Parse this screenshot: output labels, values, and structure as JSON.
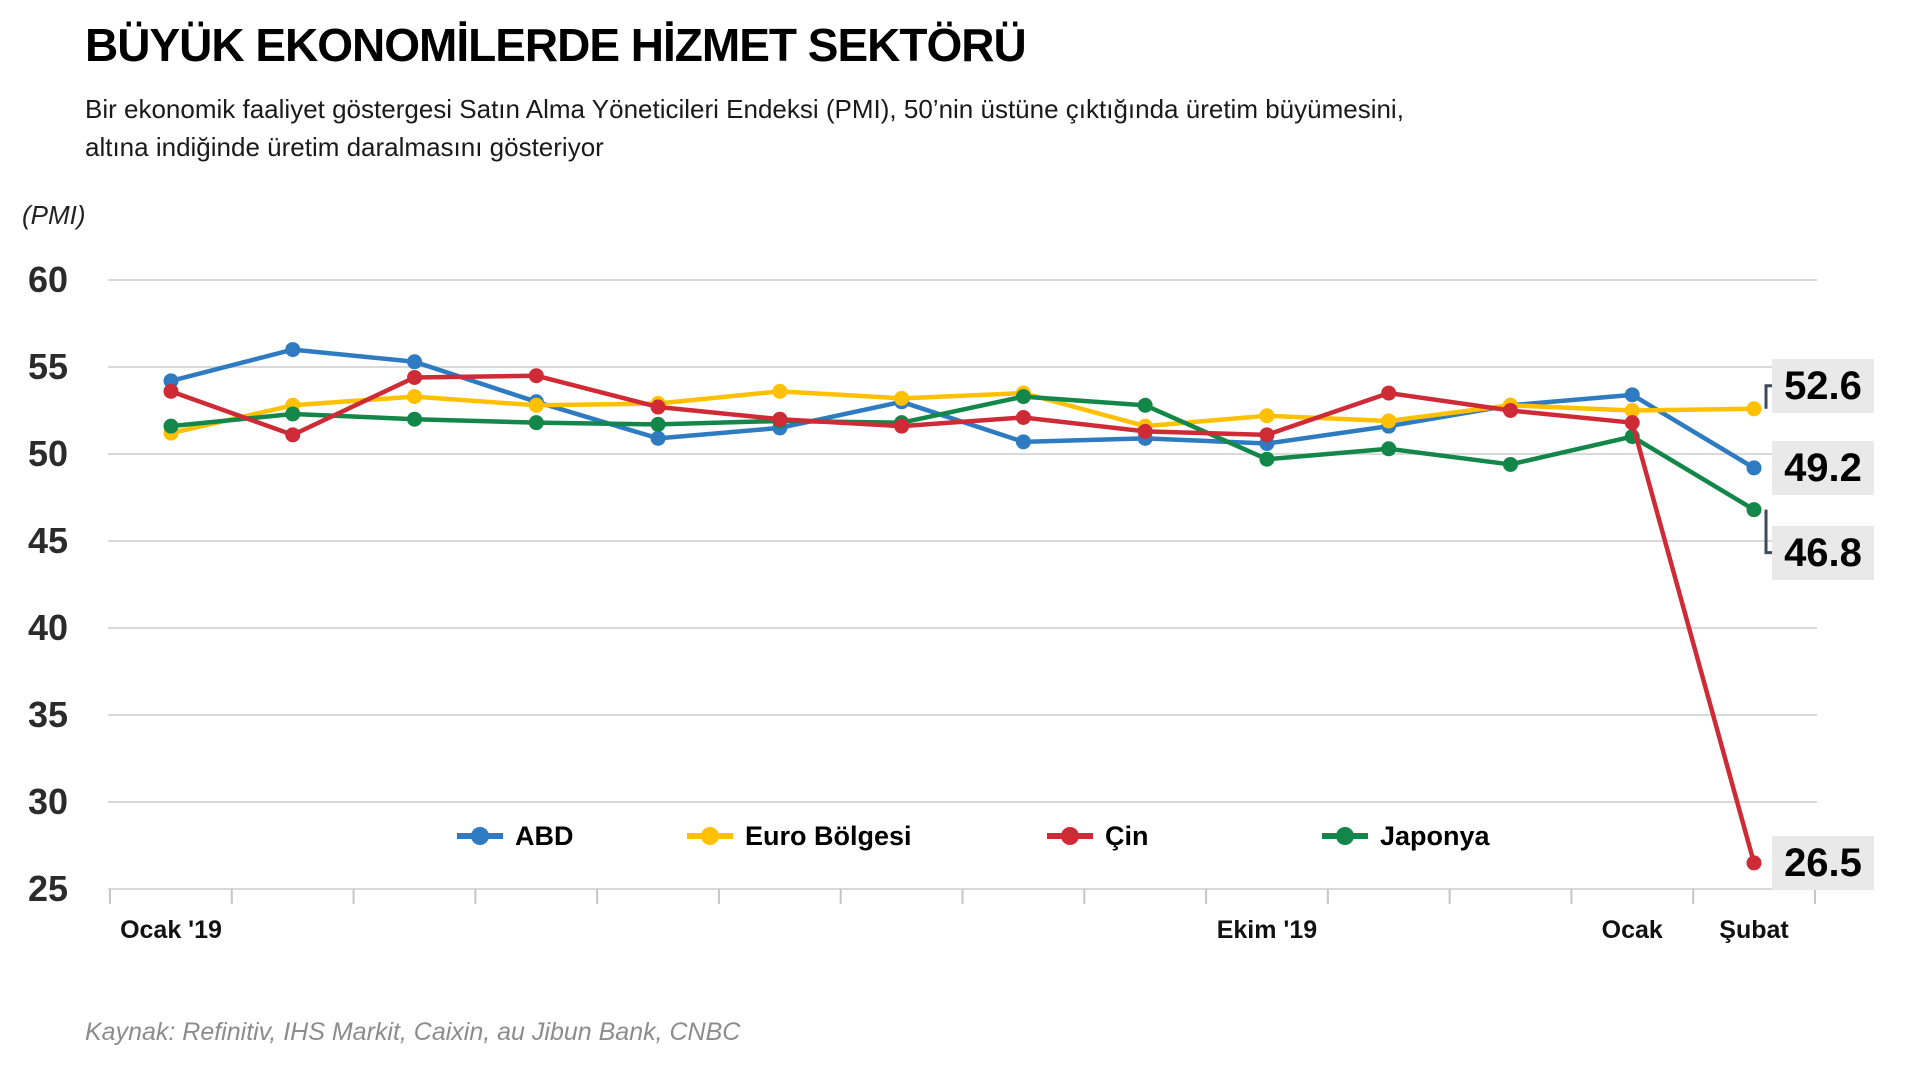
{
  "header": {
    "title": "BÜYÜK EKONOMİLERDE HİZMET SEKTÖRÜ",
    "subtitle_line1": "Bir ekonomik faaliyet göstergesi Satın Alma Yöneticileri Endeksi (PMI), 50’nin üstüne çıktığında üretim büyümesini,",
    "subtitle_line2": "altına indiğinde üretim daralmasını gösteriyor"
  },
  "axis_unit_label": "(PMI)",
  "source_note": "Kaynak: Refinitiv, IHS Markit, Caixin, au Jibun Bank, CNBC",
  "chart_data": {
    "type": "line",
    "n_points": 14,
    "x_range_note": "monthly, Ocak 2019 - Şubat 2020",
    "x_tick_labels": [
      {
        "label": "Ocak '19",
        "point_index": 0
      },
      {
        "label": "Ekim '19",
        "point_index": 9
      },
      {
        "label": "Ocak",
        "point_index": 12
      },
      {
        "label": "Şubat",
        "point_index": 13
      }
    ],
    "ylim": [
      25,
      60
    ],
    "yticks": [
      "60",
      "55",
      "50",
      "45",
      "40",
      "35",
      "30",
      "25"
    ],
    "grid": true,
    "legend_position": "bottom-inside",
    "colors": {
      "gridline": "#d9d9d9",
      "axis_tick": "#c6c6c6",
      "end_label_box": "#e9e9e9",
      "connector": "#3d4a5c"
    },
    "series": [
      {
        "name": "ABD",
        "color": "#2e7bc1",
        "end_label": "49.2",
        "values": [
          54.2,
          56.0,
          55.3,
          53.0,
          50.9,
          51.5,
          53.0,
          50.7,
          50.9,
          50.6,
          51.6,
          52.8,
          53.4,
          49.2
        ]
      },
      {
        "name": "Euro Bölgesi",
        "color": "#ffc000",
        "end_label": "52.6",
        "values": [
          51.2,
          52.8,
          53.3,
          52.8,
          52.9,
          53.6,
          53.2,
          53.5,
          51.6,
          52.2,
          51.9,
          52.8,
          52.5,
          52.6
        ]
      },
      {
        "name": "Çin",
        "color": "#ce2b37",
        "end_label": "26.5",
        "values": [
          53.6,
          51.1,
          54.4,
          54.5,
          52.7,
          52.0,
          51.6,
          52.1,
          51.3,
          51.1,
          53.5,
          52.5,
          51.8,
          26.5
        ]
      },
      {
        "name": "Japonya",
        "color": "#128749",
        "end_label": "46.8",
        "values": [
          51.6,
          52.3,
          52.0,
          51.8,
          51.7,
          51.9,
          51.8,
          53.3,
          52.8,
          49.7,
          50.3,
          49.4,
          51.0,
          46.8
        ]
      }
    ]
  }
}
